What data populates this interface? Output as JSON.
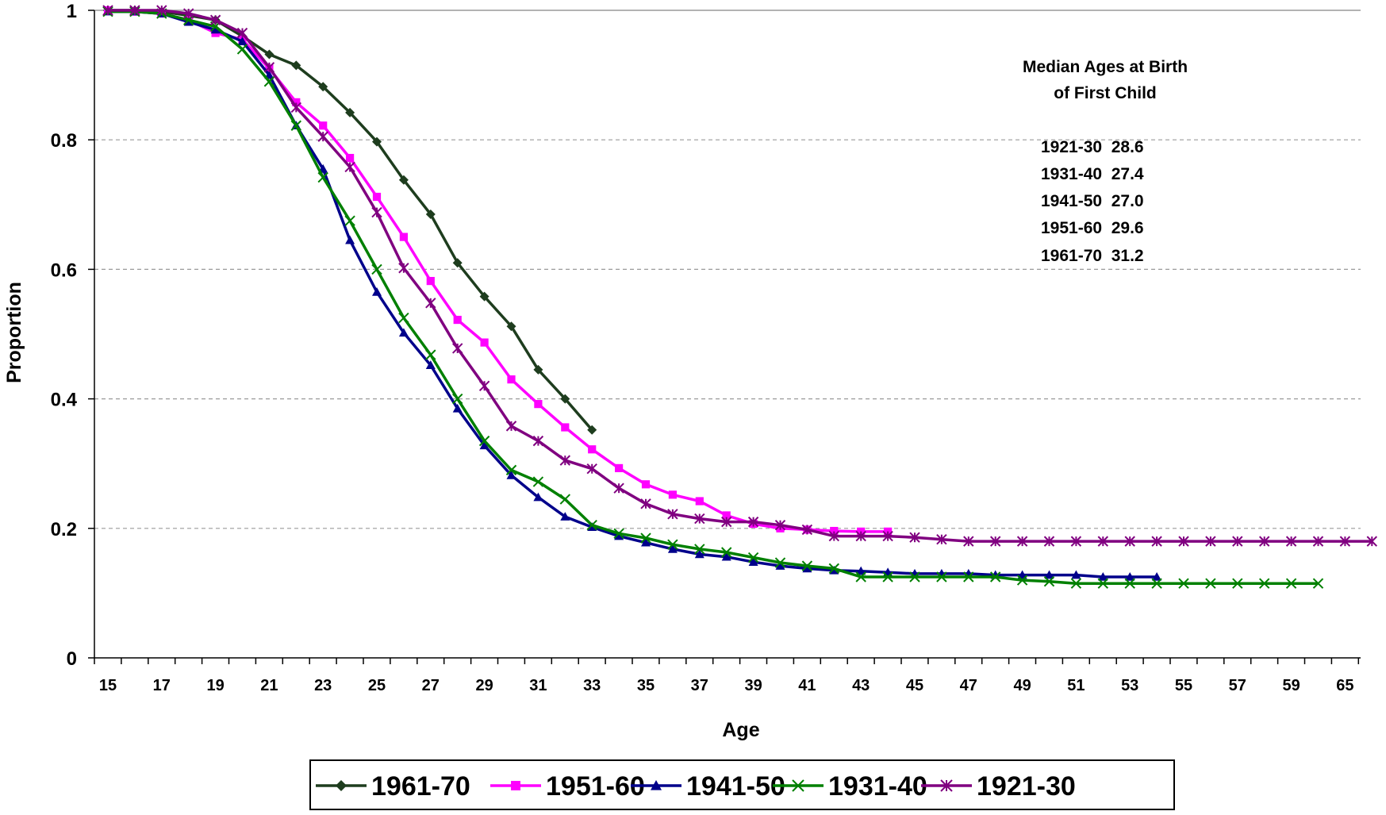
{
  "chart_data": {
    "type": "line",
    "title": "",
    "xlabel": "Age",
    "ylabel": "Proportion",
    "ylim": [
      0,
      1
    ],
    "yticks": [
      "0",
      "0.2",
      "0.4",
      "0.6",
      "0.8",
      "1"
    ],
    "yticks_values": [
      0,
      0.2,
      0.4,
      0.6,
      0.8,
      1
    ],
    "xticks": [
      "15",
      "17",
      "19",
      "21",
      "23",
      "25",
      "27",
      "29",
      "31",
      "33",
      "35",
      "37",
      "39",
      "41",
      "43",
      "45",
      "47",
      "49",
      "51",
      "53",
      "55",
      "57",
      "59",
      "65"
    ],
    "grid": "horizontal dashed",
    "legend_position": "bottom",
    "annotation": {
      "title_line1": "Median Ages at Birth",
      "title_line2": "of First Child",
      "rows": [
        "1921-30  28.6",
        "1931-40  27.4",
        "1941-50  27.0",
        "1951-60  29.6",
        "1961-70  31.2"
      ]
    },
    "series": [
      {
        "name": "1961-70",
        "color": "#1e3d1e",
        "marker": "diamond",
        "x": [
          15,
          16,
          17,
          18,
          19,
          20,
          21,
          22,
          23,
          24,
          25,
          26,
          27,
          28,
          29,
          30,
          31,
          32,
          33
        ],
        "y": [
          1.0,
          1.0,
          0.998,
          0.992,
          0.985,
          0.96,
          0.932,
          0.915,
          0.882,
          0.842,
          0.797,
          0.738,
          0.685,
          0.61,
          0.558,
          0.512,
          0.445,
          0.4,
          0.352
        ]
      },
      {
        "name": "1951-60",
        "color": "#ff00ff",
        "marker": "square",
        "x": [
          15,
          16,
          17,
          18,
          19,
          20,
          21,
          22,
          23,
          24,
          25,
          26,
          27,
          28,
          29,
          30,
          31,
          32,
          33,
          34,
          35,
          36,
          37,
          38,
          39,
          40,
          41,
          42,
          43,
          44
        ],
        "y": [
          1.0,
          0.998,
          0.995,
          0.985,
          0.965,
          0.955,
          0.91,
          0.858,
          0.822,
          0.772,
          0.712,
          0.65,
          0.582,
          0.522,
          0.487,
          0.43,
          0.392,
          0.356,
          0.322,
          0.293,
          0.268,
          0.252,
          0.242,
          0.22,
          0.207,
          0.2,
          0.198,
          0.196,
          0.195,
          0.195
        ]
      },
      {
        "name": "1941-50",
        "color": "#00008b",
        "marker": "triangle",
        "x": [
          15,
          16,
          17,
          18,
          19,
          20,
          21,
          22,
          23,
          24,
          25,
          26,
          27,
          28,
          29,
          30,
          31,
          32,
          33,
          34,
          35,
          36,
          37,
          38,
          39,
          40,
          41,
          42,
          43,
          44,
          45,
          46,
          47,
          48,
          49,
          50,
          51,
          52,
          53,
          54
        ],
        "y": [
          0.998,
          0.998,
          0.995,
          0.982,
          0.97,
          0.952,
          0.9,
          0.822,
          0.755,
          0.645,
          0.565,
          0.502,
          0.452,
          0.385,
          0.328,
          0.282,
          0.248,
          0.218,
          0.202,
          0.188,
          0.178,
          0.168,
          0.16,
          0.156,
          0.148,
          0.142,
          0.138,
          0.135,
          0.134,
          0.132,
          0.13,
          0.13,
          0.13,
          0.128,
          0.128,
          0.128,
          0.128,
          0.125,
          0.125,
          0.125
        ]
      },
      {
        "name": "1931-40",
        "color": "#008000",
        "marker": "x",
        "x": [
          15,
          16,
          17,
          18,
          19,
          20,
          21,
          22,
          23,
          24,
          25,
          26,
          27,
          28,
          29,
          30,
          31,
          32,
          33,
          34,
          35,
          36,
          37,
          38,
          39,
          40,
          41,
          42,
          43,
          44,
          45,
          46,
          47,
          48,
          49,
          50,
          51,
          52,
          53,
          54,
          55,
          56,
          57,
          58,
          59,
          60
        ],
        "y": [
          0.998,
          0.998,
          0.995,
          0.985,
          0.975,
          0.94,
          0.89,
          0.822,
          0.742,
          0.675,
          0.6,
          0.525,
          0.468,
          0.4,
          0.335,
          0.29,
          0.272,
          0.245,
          0.205,
          0.192,
          0.185,
          0.175,
          0.168,
          0.163,
          0.155,
          0.147,
          0.142,
          0.138,
          0.125,
          0.125,
          0.125,
          0.125,
          0.125,
          0.125,
          0.12,
          0.118,
          0.115,
          0.115,
          0.115,
          0.115,
          0.115,
          0.115,
          0.115,
          0.115,
          0.115,
          0.115
        ]
      },
      {
        "name": "1921-30",
        "color": "#800080",
        "marker": "star",
        "x": [
          15,
          16,
          17,
          18,
          19,
          20,
          21,
          22,
          23,
          24,
          25,
          26,
          27,
          28,
          29,
          30,
          31,
          32,
          33,
          34,
          35,
          36,
          37,
          38,
          39,
          40,
          41,
          42,
          43,
          44,
          45,
          46,
          47,
          48,
          49,
          50,
          51,
          52,
          53,
          54,
          55,
          56,
          57,
          58,
          59,
          60,
          61,
          62
        ],
        "y": [
          1.0,
          1.0,
          1.0,
          0.995,
          0.985,
          0.965,
          0.912,
          0.85,
          0.805,
          0.758,
          0.688,
          0.602,
          0.548,
          0.478,
          0.42,
          0.358,
          0.335,
          0.305,
          0.292,
          0.262,
          0.238,
          0.222,
          0.215,
          0.21,
          0.21,
          0.205,
          0.198,
          0.188,
          0.188,
          0.188,
          0.186,
          0.183,
          0.18,
          0.18,
          0.18,
          0.18,
          0.18,
          0.18,
          0.18,
          0.18,
          0.18,
          0.18,
          0.18,
          0.18,
          0.18,
          0.18,
          0.18,
          0.18
        ]
      }
    ]
  }
}
